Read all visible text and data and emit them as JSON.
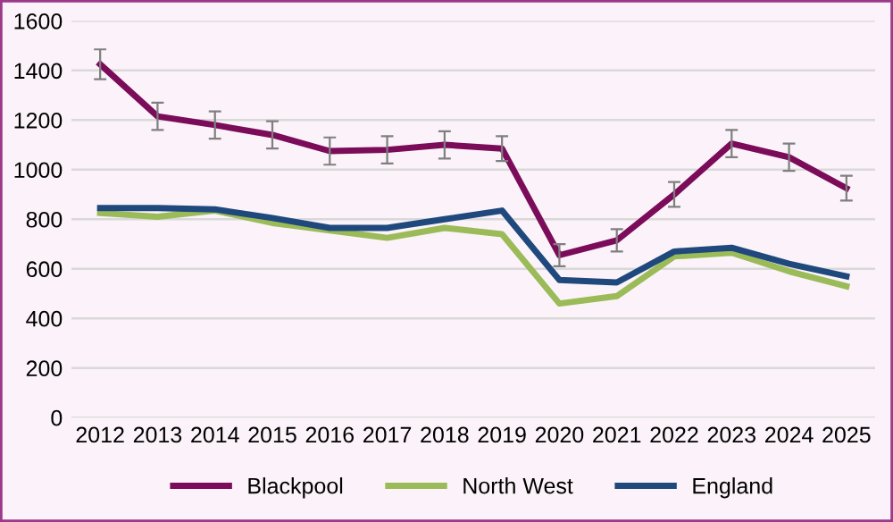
{
  "chart_data": {
    "type": "line",
    "categories": [
      "2012",
      "2013",
      "2014",
      "2015",
      "2016",
      "2017",
      "2018",
      "2019",
      "2020",
      "2021",
      "2022",
      "2023",
      "2024",
      "2025"
    ],
    "series": [
      {
        "name": "Blackpool",
        "color": "#7b0c5a",
        "values": [
          1425,
          1215,
          1180,
          1140,
          1075,
          1080,
          1100,
          1085,
          655,
          715,
          900,
          1105,
          1050,
          925
        ],
        "errors": [
          60,
          55,
          55,
          55,
          55,
          55,
          55,
          50,
          45,
          45,
          50,
          55,
          55,
          50
        ]
      },
      {
        "name": "North West",
        "color": "#9bbb59",
        "values": [
          825,
          810,
          835,
          785,
          755,
          725,
          765,
          740,
          460,
          490,
          650,
          665,
          590,
          530
        ]
      },
      {
        "name": "England",
        "color": "#1f497d",
        "values": [
          845,
          845,
          840,
          805,
          765,
          765,
          800,
          835,
          555,
          545,
          670,
          685,
          620,
          570
        ]
      }
    ],
    "ylim": [
      0,
      1600
    ],
    "yticks": [
      0,
      200,
      400,
      600,
      800,
      1000,
      1200,
      1400,
      1600
    ],
    "grid": "y",
    "legend": "bottom",
    "marker": "none",
    "line_style": "solid"
  }
}
